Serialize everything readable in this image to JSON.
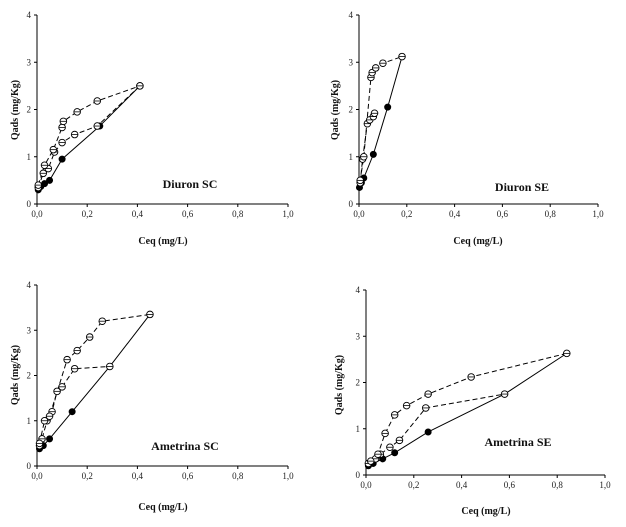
{
  "chart_data": [
    {
      "type": "scatter",
      "title": "Diuron SC",
      "xlabel": "Ceq (mg/L)",
      "ylabel": "Qads (mg/Kg)",
      "xlim": [
        0,
        1.0
      ],
      "ylim": [
        0,
        4
      ],
      "xticks": [
        "0,0",
        "0,2",
        "0,4",
        "0,6",
        "0,8",
        "1,0"
      ],
      "yticks": [
        "0",
        "1",
        "2",
        "3",
        "4"
      ],
      "grid": false,
      "series": [
        {
          "marker": "filled",
          "line": "solid",
          "x": [
            0.005,
            0.015,
            0.03,
            0.05,
            0.1,
            0.25,
            0.41
          ],
          "y": [
            0.3,
            0.37,
            0.43,
            0.5,
            0.95,
            1.65,
            2.5
          ]
        },
        {
          "marker": "open",
          "line": "dashed",
          "x": [
            0.005,
            0.025,
            0.045,
            0.07,
            0.1,
            0.15,
            0.24,
            0.41
          ],
          "y": [
            0.35,
            0.65,
            0.75,
            1.1,
            1.3,
            1.47,
            1.65,
            2.5
          ]
        },
        {
          "marker": "open",
          "line": "dashed",
          "x": [
            0.005,
            0.03,
            0.065,
            0.1,
            0.105,
            0.16,
            0.24,
            0.41
          ],
          "y": [
            0.4,
            0.82,
            1.15,
            1.62,
            1.75,
            1.95,
            2.18,
            2.5
          ]
        }
      ]
    },
    {
      "type": "scatter",
      "title": "Diuron SE",
      "xlabel": "Ceq (mg/L)",
      "ylabel": "Qads (mg/Kg)",
      "xlim": [
        0,
        1.0
      ],
      "ylim": [
        0,
        4
      ],
      "xticks": [
        "0,0",
        "0,2",
        "0,4",
        "0,6",
        "0,8",
        "1,0"
      ],
      "yticks": [
        "0",
        "1",
        "2",
        "3",
        "4"
      ],
      "grid": false,
      "series": [
        {
          "marker": "filled",
          "line": "solid",
          "x": [
            0.002,
            0.01,
            0.02,
            0.06,
            0.12,
            0.18
          ],
          "y": [
            0.35,
            0.45,
            0.55,
            1.05,
            2.05,
            3.12
          ]
        },
        {
          "marker": "open",
          "line": "dashed",
          "x": [
            0.005,
            0.015,
            0.035,
            0.045,
            0.06,
            0.065
          ],
          "y": [
            0.45,
            0.95,
            1.7,
            1.78,
            1.85,
            1.92
          ]
        },
        {
          "marker": "open",
          "line": "dashed",
          "x": [
            0.005,
            0.02,
            0.05,
            0.055,
            0.07,
            0.1,
            0.18
          ],
          "y": [
            0.5,
            1.0,
            2.68,
            2.78,
            2.88,
            2.98,
            3.12
          ]
        }
      ]
    },
    {
      "type": "scatter",
      "title": "Ametrina SC",
      "xlabel": "Ceq (mg/L)",
      "ylabel": "Qads (mg/Kg)",
      "xlim": [
        0,
        1.0
      ],
      "ylim": [
        0,
        4
      ],
      "xticks": [
        "0,0",
        "0,2",
        "0,4",
        "0,6",
        "0,8",
        "1,0"
      ],
      "yticks": [
        "0",
        "1",
        "2",
        "3",
        "4"
      ],
      "grid": false,
      "series": [
        {
          "marker": "filled",
          "line": "solid",
          "x": [
            0.01,
            0.025,
            0.05,
            0.14,
            0.29,
            0.45
          ],
          "y": [
            0.38,
            0.45,
            0.6,
            1.2,
            2.2,
            3.35
          ]
        },
        {
          "marker": "open",
          "line": "dashed",
          "x": [
            0.01,
            0.02,
            0.04,
            0.06,
            0.08,
            0.1,
            0.15,
            0.29
          ],
          "y": [
            0.45,
            0.6,
            1.0,
            1.2,
            1.65,
            1.75,
            2.15,
            2.2
          ]
        },
        {
          "marker": "open",
          "line": "dashed",
          "x": [
            0.01,
            0.03,
            0.05,
            0.12,
            0.16,
            0.21,
            0.26,
            0.45
          ],
          "y": [
            0.5,
            1.0,
            1.1,
            2.35,
            2.55,
            2.85,
            3.2,
            3.35
          ]
        }
      ]
    },
    {
      "type": "scatter",
      "title": "Ametrina SE",
      "xlabel": "Ceq (mg/L)",
      "ylabel": "Qads (mg/Kg)",
      "xlim": [
        0,
        1.0
      ],
      "ylim": [
        0,
        4
      ],
      "xticks": [
        "0,0",
        "0,2",
        "0,4",
        "0,6",
        "0,8",
        "1,0"
      ],
      "yticks": [
        "0",
        "1",
        "2",
        "3",
        "4"
      ],
      "grid": false,
      "series": [
        {
          "marker": "filled",
          "line": "solid",
          "x": [
            0.01,
            0.03,
            0.07,
            0.12,
            0.26,
            0.58,
            0.84
          ],
          "y": [
            0.2,
            0.25,
            0.35,
            0.48,
            0.93,
            1.75,
            2.63
          ]
        },
        {
          "marker": "open",
          "line": "dashed",
          "x": [
            0.01,
            0.04,
            0.06,
            0.1,
            0.14,
            0.25,
            0.58
          ],
          "y": [
            0.25,
            0.35,
            0.45,
            0.6,
            0.75,
            1.45,
            1.75
          ]
        },
        {
          "marker": "open",
          "line": "dashed",
          "x": [
            0.02,
            0.05,
            0.08,
            0.12,
            0.17,
            0.26,
            0.44,
            0.84
          ],
          "y": [
            0.3,
            0.45,
            0.9,
            1.3,
            1.5,
            1.75,
            2.12,
            2.63
          ]
        }
      ]
    }
  ]
}
